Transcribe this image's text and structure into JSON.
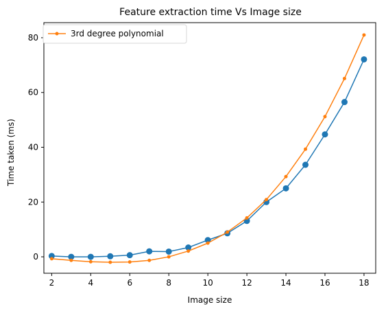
{
  "chart_data": {
    "type": "line",
    "title": "Feature extraction time Vs Image size",
    "xlabel": "Image size",
    "ylabel": "Time taken (ms)",
    "xlim": [
      1.6,
      18.6
    ],
    "ylim": [
      -6,
      85.5
    ],
    "xticks": [
      2,
      4,
      6,
      8,
      10,
      12,
      14,
      16,
      18
    ],
    "yticks": [
      0,
      20,
      40,
      60,
      80
    ],
    "grid": false,
    "legend_position": "top-left",
    "x": [
      2,
      3,
      4,
      5,
      6,
      7,
      8,
      9,
      10,
      11,
      12,
      13,
      14,
      15,
      16,
      17,
      18
    ],
    "series": [
      {
        "name": "",
        "color": "#1f77b4",
        "marker": "circle",
        "values": [
          0.3,
          0.0,
          0.0,
          0.2,
          0.6,
          2.0,
          1.9,
          3.4,
          6.1,
          8.6,
          13.1,
          20.0,
          25.0,
          33.6,
          44.7,
          56.5,
          72.1
        ]
      },
      {
        "name": "3rd degree polynomial",
        "color": "#ff7f0e",
        "marker": "small-circle",
        "values": [
          -0.7,
          -1.3,
          -1.8,
          -2.0,
          -1.9,
          -1.3,
          0.0,
          2.1,
          5.0,
          9.0,
          14.2,
          20.9,
          29.3,
          39.3,
          51.2,
          65.1,
          81.0
        ]
      }
    ]
  }
}
